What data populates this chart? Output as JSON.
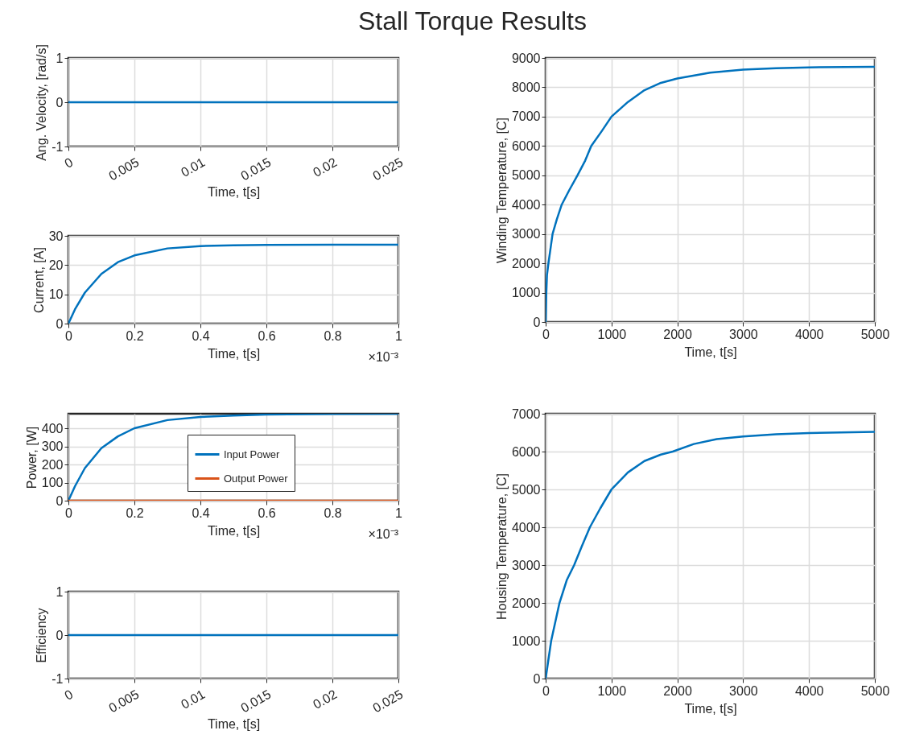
{
  "chart_data": [
    {
      "type": "line",
      "title": "Stall Torque Results",
      "xlabel": "Time, t[s]",
      "ylabel": "Ang. Velocity, [rad/s]",
      "x": [
        0,
        0.025
      ],
      "xlim": [
        0,
        0.025
      ],
      "xticks": [
        0,
        0.005,
        0.01,
        0.015,
        0.02,
        0.025
      ],
      "ylim": [
        -1,
        1
      ],
      "yticks": [
        -1,
        0,
        1
      ],
      "grid": true,
      "series": [
        {
          "color": "#0072bd",
          "values": [
            0,
            0
          ]
        }
      ]
    },
    {
      "type": "line",
      "xlabel": "Time, t[s]",
      "ylabel": "Winding Temperature, [C]",
      "xlim": [
        0,
        5000
      ],
      "xticks": [
        0,
        1000,
        2000,
        3000,
        4000,
        5000
      ],
      "ylim": [
        0,
        9000
      ],
      "yticks": [
        0,
        1000,
        2000,
        3000,
        4000,
        5000,
        6000,
        7000,
        8000,
        9000
      ],
      "grid": true,
      "x": [
        0,
        10,
        20,
        42,
        105,
        170,
        244,
        360,
        483,
        600,
        693,
        850,
        1000,
        1250,
        1500,
        1750,
        2000,
        2500,
        3000,
        3500,
        4000,
        5000
      ],
      "series": [
        {
          "color": "#0072bd",
          "values": [
            0,
            1000,
            1600,
            2000,
            3000,
            3500,
            4000,
            4500,
            5000,
            5500,
            6000,
            6500,
            7000,
            7500,
            7900,
            8150,
            8300,
            8500,
            8600,
            8650,
            8680,
            8700
          ]
        }
      ]
    },
    {
      "type": "line",
      "xlabel": "Time, t[s]",
      "ylabel": "Current, [A]",
      "xlim": [
        0,
        1
      ],
      "xticks": [
        0,
        0.2,
        0.4,
        0.6,
        0.8,
        1
      ],
      "ylim": [
        0,
        30
      ],
      "yticks": [
        0,
        10,
        20,
        30
      ],
      "grid": true,
      "annotations": [
        "×10⁻³"
      ],
      "x": [
        0,
        0.02,
        0.05,
        0.1,
        0.15,
        0.2,
        0.3,
        0.4,
        0.5,
        0.6,
        0.8,
        1
      ],
      "series": [
        {
          "color": "#0072bd",
          "values": [
            0,
            4.9,
            10.6,
            17,
            21,
            23.3,
            25.7,
            26.5,
            26.8,
            26.9,
            27,
            27
          ]
        }
      ]
    },
    {
      "type": "line",
      "xlabel": "Time, t[s]",
      "ylabel": "Power, [W]",
      "xlim": [
        0,
        1
      ],
      "xticks": [
        0,
        0.2,
        0.4,
        0.6,
        0.8,
        1
      ],
      "ylim": [
        0,
        480
      ],
      "yticks": [
        0,
        100,
        200,
        300,
        400
      ],
      "grid": true,
      "legend": "right",
      "annotations": [
        "×10⁻³"
      ],
      "x": [
        0,
        0.02,
        0.05,
        0.1,
        0.15,
        0.2,
        0.3,
        0.4,
        0.5,
        0.6,
        0.8,
        1
      ],
      "series": [
        {
          "name": "Input Power",
          "color": "#0072bd",
          "values": [
            0,
            80,
            180,
            290,
            355,
            400,
            445,
            462,
            470,
            475,
            479,
            480
          ]
        },
        {
          "name": "Output Power",
          "color": "#d95319",
          "values": [
            0,
            0,
            0,
            0,
            0,
            0,
            0,
            0,
            0,
            0,
            0,
            0
          ]
        }
      ]
    },
    {
      "type": "line",
      "xlabel": "Time, t[s]",
      "ylabel": "Housing Temperature, [C]",
      "xlim": [
        0,
        5000
      ],
      "xticks": [
        0,
        1000,
        2000,
        3000,
        4000,
        5000
      ],
      "ylim": [
        0,
        7000
      ],
      "yticks": [
        0,
        1000,
        2000,
        3000,
        4000,
        5000,
        6000,
        7000
      ],
      "grid": true,
      "x": [
        0,
        84,
        210,
        320,
        433,
        550,
        672,
        830,
        1000,
        1250,
        1500,
        1750,
        1930,
        2250,
        2600,
        3000,
        3500,
        4000,
        5000
      ],
      "series": [
        {
          "color": "#0072bd",
          "values": [
            0,
            1000,
            2000,
            2600,
            3000,
            3500,
            4000,
            4500,
            5000,
            5450,
            5750,
            5920,
            6000,
            6200,
            6330,
            6400,
            6460,
            6490,
            6520
          ]
        }
      ]
    },
    {
      "type": "line",
      "xlabel": "Time, t[s]",
      "ylabel": "Efficiency",
      "x": [
        0,
        0.025
      ],
      "xlim": [
        0,
        0.025
      ],
      "xticks": [
        0,
        0.005,
        0.01,
        0.015,
        0.02,
        0.025
      ],
      "ylim": [
        -1,
        1
      ],
      "yticks": [
        -1,
        0,
        1
      ],
      "grid": true,
      "series": [
        {
          "color": "#0072bd",
          "values": [
            0,
            0
          ]
        }
      ]
    }
  ]
}
